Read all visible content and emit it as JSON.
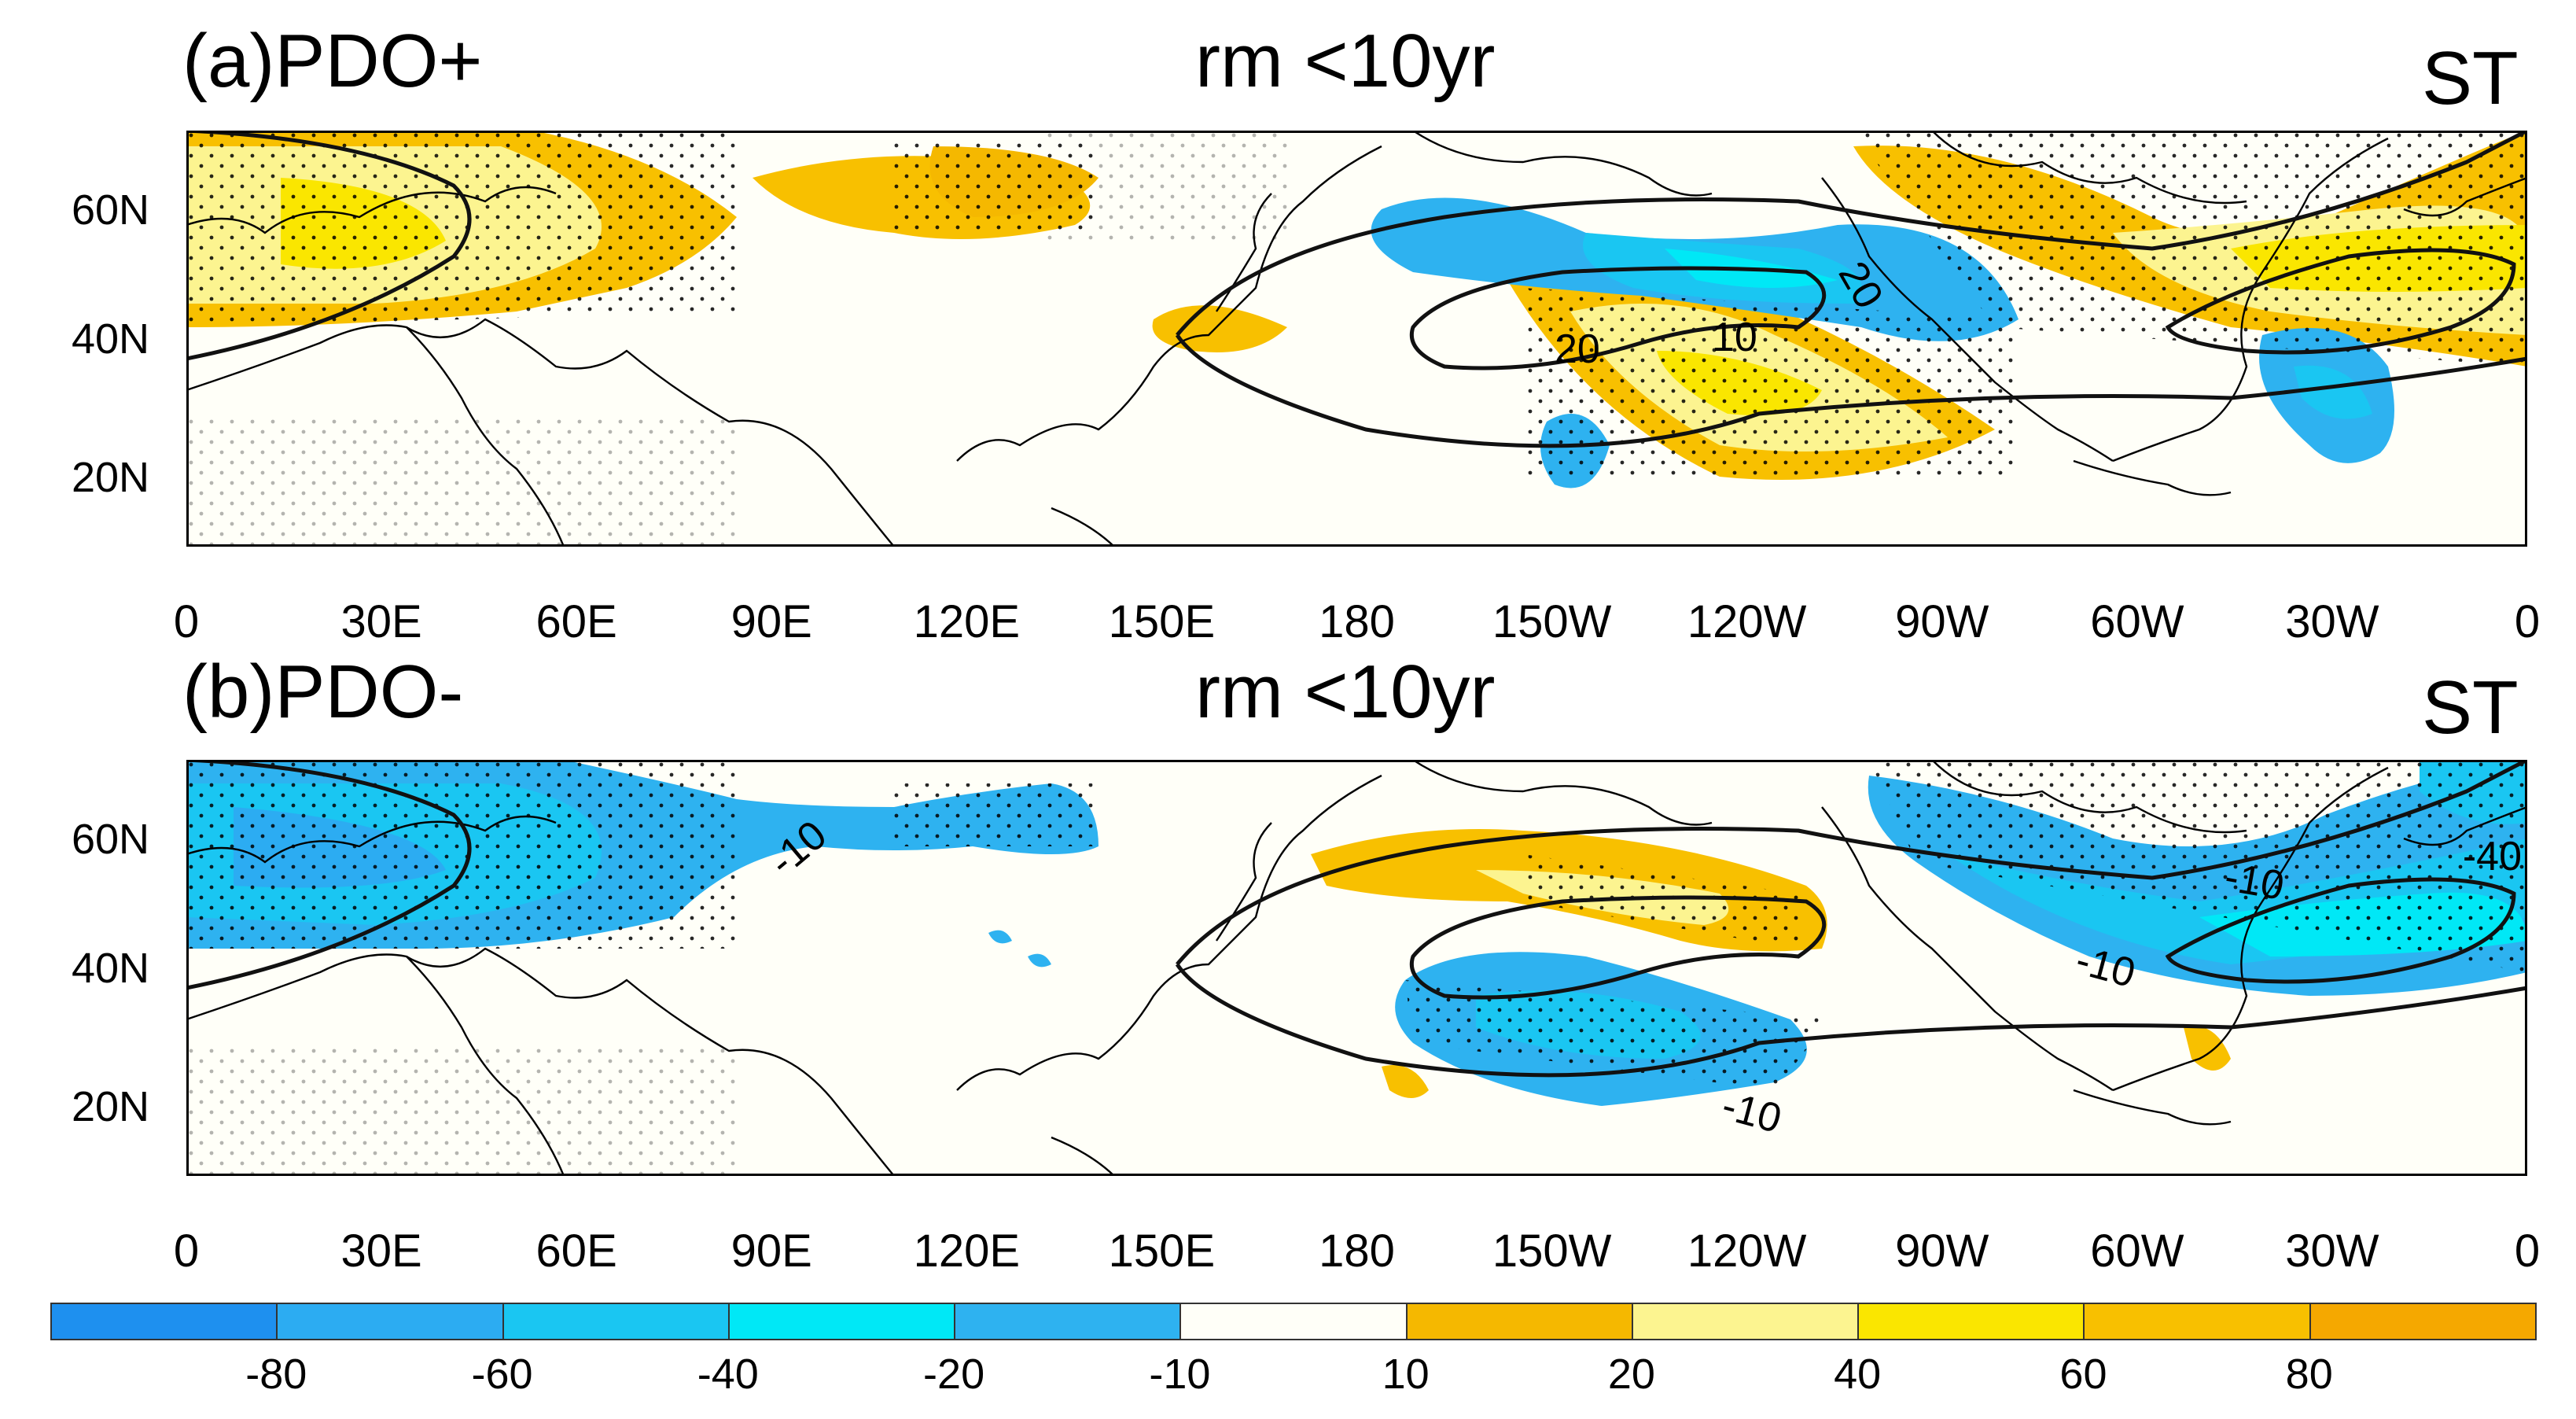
{
  "panels": [
    {
      "id": "a",
      "label": "(a)PDO+",
      "center_title": "rm <10yr",
      "right_title": "ST"
    },
    {
      "id": "b",
      "label": "(b)PDO-",
      "center_title": "rm <10yr",
      "right_title": "ST"
    }
  ],
  "map_extent": {
    "lon_min": 0,
    "lon_max": 360,
    "lat_min": 10,
    "lat_max": 70
  },
  "lat_labels": [
    "60N",
    "40N",
    "20N"
  ],
  "lon_labels": [
    "0",
    "30E",
    "60E",
    "90E",
    "120E",
    "150E",
    "180",
    "150W",
    "120W",
    "90W",
    "60W",
    "30W",
    "0"
  ],
  "contour_labels": {
    "a": [
      "20",
      "20",
      "10"
    ],
    "b": [
      "-10",
      "-10",
      "-10",
      "-10",
      "-40"
    ]
  },
  "colorbar": {
    "labels": [
      "-80",
      "-60",
      "-40",
      "-20",
      "-10",
      "10",
      "20",
      "40",
      "60",
      "80"
    ],
    "colors": [
      "#1e90ef",
      "#2cacf2",
      "#1ac6f2",
      "#00e8f6",
      "#2eb2f0",
      "#fffff8",
      "#f5b800",
      "#fcf490",
      "#fae600",
      "#f8c000",
      "#f5a800"
    ]
  }
}
